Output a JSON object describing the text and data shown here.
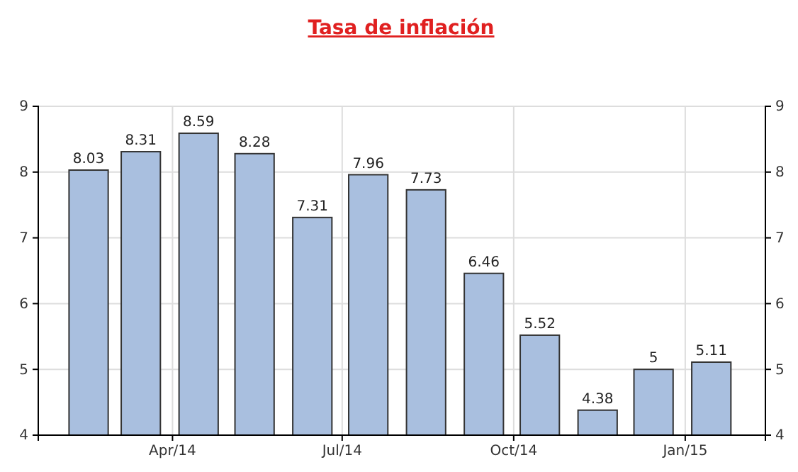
{
  "chart_data": {
    "type": "bar",
    "title": "Tasa de inflación",
    "x": [
      "2014-02-15",
      "2014-03-15",
      "2014-04-15",
      "2014-05-15",
      "2014-06-15",
      "2014-07-15",
      "2014-08-15",
      "2014-09-15",
      "2014-10-15",
      "2014-11-15",
      "2014-12-15",
      "2015-01-15"
    ],
    "values": [
      8.03,
      8.31,
      8.59,
      8.28,
      7.31,
      7.96,
      7.73,
      6.46,
      5.52,
      4.38,
      5,
      5.11
    ],
    "color": "#a9bfdf",
    "data_labels": true,
    "xlim": [
      "2014-01-19",
      "2015-02-13"
    ],
    "xticks": [
      {
        "value": "2014-04-01",
        "label": "Apr/14"
      },
      {
        "value": "2014-07-01",
        "label": "Jul/14"
      },
      {
        "value": "2014-10-01",
        "label": "Oct/14"
      },
      {
        "value": "2015-01-01",
        "label": "Jan/15"
      }
    ],
    "ylim": [
      4,
      9
    ],
    "yticks": [
      4,
      5,
      6,
      7,
      8,
      9
    ],
    "y2lim": [
      4,
      9
    ],
    "y2ticks": [
      4,
      5,
      6,
      7,
      8,
      9
    ],
    "grid": true
  }
}
